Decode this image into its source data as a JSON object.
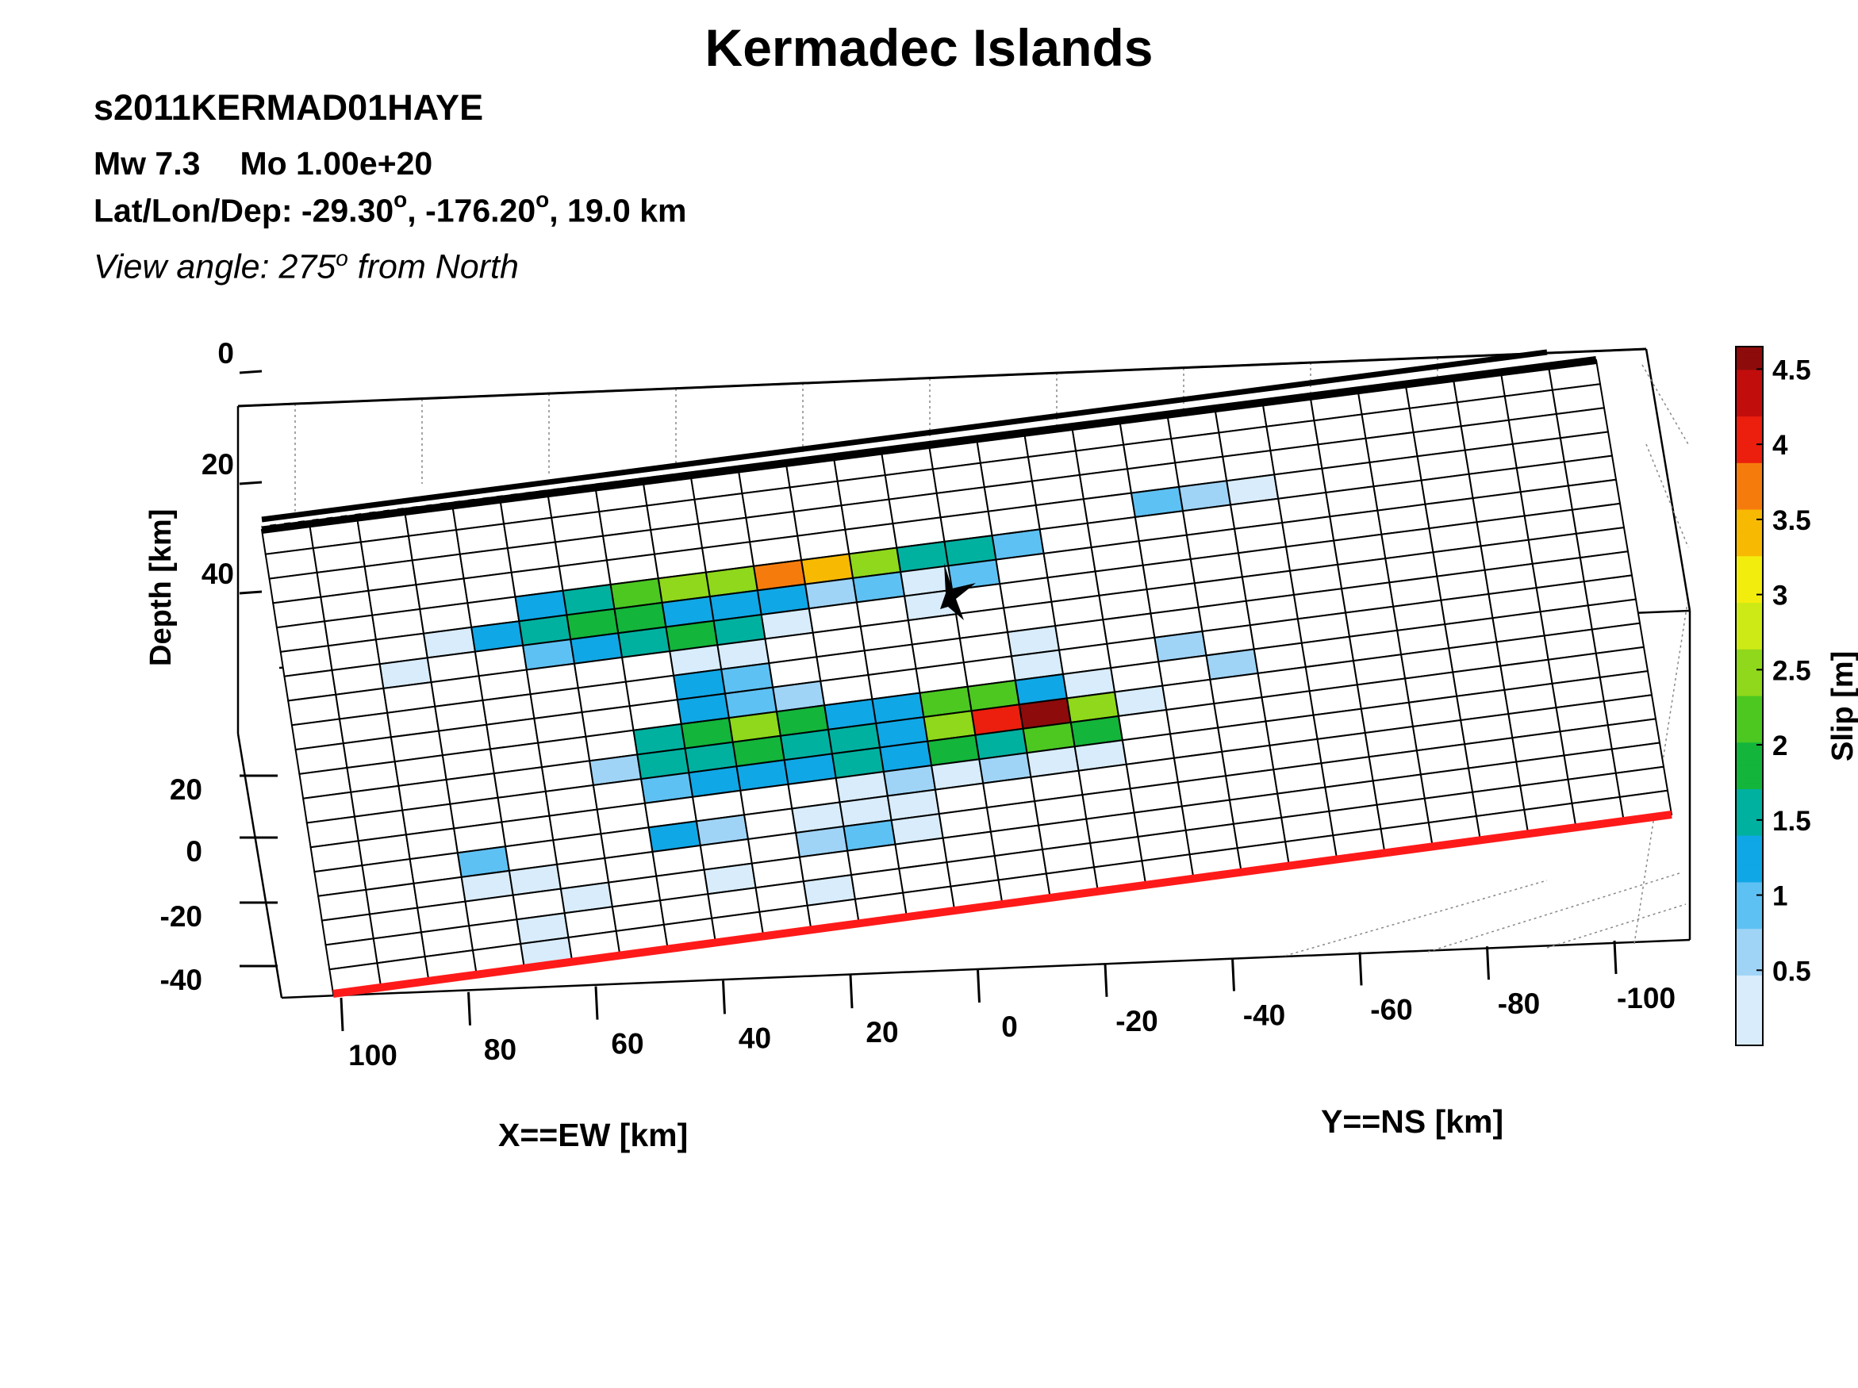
{
  "figure": {
    "title": "Kermadec Islands",
    "event_id": "s2011KERMAD01HAYE",
    "mw_label": "Mw 7.3",
    "mo_label": "Mo 1.00e+20",
    "location_prefix": "Lat/Lon/Dep: -29.30",
    "location_deg1": "o",
    "location_mid": ", -176.20",
    "location_deg2": "o",
    "location_suffix": ", 19.0 km",
    "view_prefix": "View angle: 275",
    "view_deg": "o",
    "view_suffix": " from North"
  },
  "colors": {
    "trench_line": "#000000",
    "surface_trace": "#ff1a1a",
    "grid_line": "#000000",
    "colormap": [
      "#ffffff",
      "#d8ecfb",
      "#9fd4f7",
      "#5ec1f3",
      "#10a7e6",
      "#00b1a0",
      "#13b53a",
      "#4cc821",
      "#8fd81b",
      "#cdea16",
      "#f3ed0d",
      "#f7b902",
      "#f57c0c",
      "#ec1e0d",
      "#c20d0d",
      "#8e0b0b"
    ]
  },
  "chart_data": {
    "type": "heatmap",
    "title": "Kermadec Islands",
    "xlabel": "X==EW [km]",
    "ylabel": "Y==NS [km]",
    "zlabel": "Depth [km]",
    "colorbar_label": "Slip [m]",
    "x_ticks": [
      "100",
      "80",
      "60",
      "40",
      "20",
      "0",
      "-20",
      "-40",
      "-60",
      "-80",
      "-100"
    ],
    "ns_ticks": [
      "20",
      "0",
      "-20",
      "-40"
    ],
    "depth_ticks": [
      "0",
      "20",
      "40"
    ],
    "colorbar_ticks": [
      "4.5",
      "4",
      "3.5",
      "3",
      "2.5",
      "2",
      "1.5",
      "1",
      "0.5"
    ],
    "colorbar_range": [
      0,
      4.65
    ],
    "grid": true,
    "slip_m_rows_top_to_bottom": [
      [
        0,
        0,
        0,
        0,
        0,
        0,
        0,
        0,
        0,
        0,
        0,
        0,
        0,
        0,
        0,
        0,
        0,
        0,
        0,
        0,
        0,
        0,
        0,
        0,
        0,
        0,
        0,
        0
      ],
      [
        0,
        0,
        0,
        0,
        0,
        0,
        0,
        0,
        0,
        0,
        0,
        0,
        0,
        0,
        0,
        0,
        0,
        0,
        0,
        0,
        0,
        0,
        0,
        0,
        0,
        0,
        0,
        0
      ],
      [
        0,
        0,
        0,
        0,
        0,
        0,
        0,
        0,
        0,
        0,
        0,
        0,
        0,
        0,
        0,
        0,
        0,
        0,
        0,
        0,
        0,
        0,
        0,
        0,
        0,
        0,
        0,
        0
      ],
      [
        0,
        0,
        0,
        0,
        0,
        0,
        0,
        0,
        0,
        0,
        0,
        0,
        0,
        0,
        0,
        0,
        0,
        0,
        1.0,
        0.7,
        0.4,
        0,
        0,
        0,
        0,
        0,
        0,
        0
      ],
      [
        0,
        0,
        0,
        0,
        0,
        1.2,
        1.7,
        2.1,
        2.4,
        2.6,
        3.6,
        3.4,
        2.5,
        1.4,
        1.6,
        0.9,
        0,
        0,
        0,
        0,
        0,
        0,
        0,
        0,
        0,
        0,
        0,
        0
      ],
      [
        0,
        0,
        0,
        0.05,
        1.3,
        1.6,
        1.9,
        2.0,
        1.3,
        1.3,
        1.2,
        0.5,
        0.9,
        0.1,
        0.8,
        0,
        0,
        0,
        0,
        0,
        0,
        0,
        0,
        0,
        0,
        0,
        0,
        0
      ],
      [
        0,
        0,
        0.1,
        0,
        0,
        0.95,
        1.3,
        1.6,
        1.8,
        1.45,
        0.15,
        0,
        0,
        0.1,
        0,
        0,
        0,
        0,
        0,
        0,
        0,
        0,
        0,
        0,
        0,
        0,
        0,
        0
      ],
      [
        0,
        0,
        0,
        0,
        0,
        0,
        0,
        0,
        0.35,
        0.2,
        0,
        0,
        0,
        0,
        0,
        0,
        0,
        0,
        0,
        0,
        0,
        0,
        0,
        0,
        0,
        0,
        0,
        0
      ],
      [
        0,
        0,
        0,
        0,
        0,
        0,
        0,
        0,
        1.2,
        1.0,
        0,
        0,
        0,
        0,
        0,
        0.1,
        0,
        0,
        0,
        0,
        0,
        0,
        0,
        0,
        0,
        0,
        0,
        0
      ],
      [
        0,
        0,
        0,
        0,
        0,
        0,
        0,
        0,
        1.2,
        0.8,
        0.5,
        0,
        0,
        0,
        0,
        0.2,
        0,
        0,
        0.5,
        0,
        0,
        0,
        0,
        0,
        0,
        0,
        0,
        0
      ],
      [
        0,
        0,
        0,
        0,
        0,
        0,
        0,
        1.7,
        2.0,
        2.4,
        1.8,
        1.3,
        1.2,
        2.2,
        2.1,
        1.2,
        0.3,
        0,
        0,
        0.5,
        0,
        0,
        0,
        0,
        0,
        0,
        0,
        0
      ],
      [
        0,
        0,
        0,
        0,
        0,
        0,
        0.5,
        1.4,
        1.7,
        2.0,
        1.6,
        1.4,
        1.3,
        2.5,
        4.0,
        4.65,
        2.4,
        0.3,
        0,
        0,
        0,
        0,
        0,
        0,
        0,
        0,
        0,
        0
      ],
      [
        0,
        0,
        0,
        0,
        0,
        0,
        0,
        0.8,
        1.2,
        1.3,
        1.2,
        1.4,
        1.2,
        1.8,
        1.5,
        2.3,
        1.9,
        0,
        0,
        0,
        0,
        0,
        0,
        0,
        0,
        0,
        0,
        0
      ],
      [
        0,
        0,
        0,
        0,
        0,
        0,
        0,
        0,
        0,
        0,
        0,
        0.4,
        0.5,
        0.4,
        0.5,
        0.4,
        0.15,
        0,
        0,
        0,
        0,
        0,
        0,
        0,
        0,
        0,
        0,
        0
      ],
      [
        0,
        0,
        0,
        0.8,
        0,
        0,
        0,
        1.2,
        0.6,
        0,
        0.3,
        0.4,
        0.4,
        0,
        0,
        0,
        0,
        0,
        0,
        0,
        0,
        0,
        0,
        0,
        0,
        0,
        0,
        0
      ],
      [
        0,
        0,
        0,
        0.4,
        0.3,
        0,
        0,
        0,
        0,
        0,
        0.5,
        0.9,
        0.4,
        0,
        0,
        0,
        0,
        0,
        0,
        0,
        0,
        0,
        0,
        0,
        0,
        0,
        0,
        0
      ],
      [
        0,
        0,
        0,
        0,
        0,
        0.2,
        0,
        0,
        0.1,
        0,
        0,
        0,
        0,
        0,
        0,
        0,
        0,
        0,
        0,
        0,
        0,
        0,
        0,
        0,
        0,
        0,
        0,
        0
      ],
      [
        0,
        0,
        0,
        0,
        0.15,
        0,
        0,
        0,
        0,
        0,
        0.05,
        0,
        0,
        0,
        0,
        0,
        0,
        0,
        0,
        0,
        0,
        0,
        0,
        0,
        0,
        0,
        0,
        0
      ],
      [
        0,
        0,
        0,
        0,
        0.1,
        0,
        0,
        0,
        0,
        0,
        0,
        0,
        0,
        0,
        0,
        0,
        0,
        0,
        0,
        0,
        0,
        0,
        0,
        0,
        0,
        0,
        0,
        0
      ]
    ]
  }
}
